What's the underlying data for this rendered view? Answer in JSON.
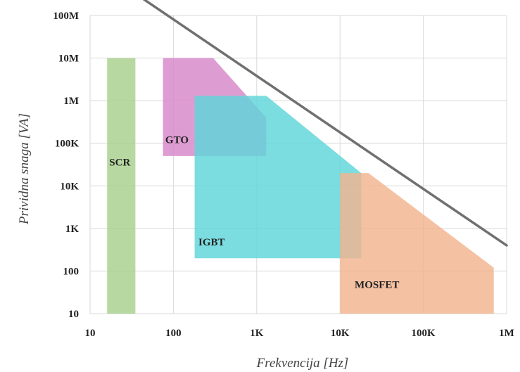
{
  "chart_data": {
    "type": "area",
    "x_scale": "log",
    "y_scale": "log",
    "xlim": [
      10,
      1000000
    ],
    "ylim": [
      10,
      100000000
    ],
    "grid": true,
    "xlabel": "Frekvencija [Hz]",
    "ylabel": "Prividna snaga [VA]",
    "x_ticks": [
      {
        "value": 10,
        "label": "10"
      },
      {
        "value": 100,
        "label": "100"
      },
      {
        "value": 1000,
        "label": "1K"
      },
      {
        "value": 10000,
        "label": "10K"
      },
      {
        "value": 100000,
        "label": "100K"
      },
      {
        "value": 1000000,
        "label": "1M"
      }
    ],
    "y_ticks": [
      {
        "value": 10,
        "label": "10"
      },
      {
        "value": 100,
        "label": "100"
      },
      {
        "value": 1000,
        "label": "1K"
      },
      {
        "value": 10000,
        "label": "10K"
      },
      {
        "value": 100000,
        "label": "100K"
      },
      {
        "value": 1000000,
        "label": "1M"
      },
      {
        "value": 10000000,
        "label": "10M"
      },
      {
        "value": 100000000,
        "label": "100M"
      }
    ],
    "regions": [
      {
        "label": "SCR",
        "color": "#a8d08d",
        "polygon": [
          [
            16,
            10
          ],
          [
            35,
            10
          ],
          [
            35,
            10000000
          ],
          [
            16,
            10000000
          ]
        ],
        "label_at": [
          17,
          30000
        ]
      },
      {
        "label": "GTO",
        "color": "#d787c8",
        "polygon": [
          [
            75,
            50000
          ],
          [
            1300,
            50000
          ],
          [
            1300,
            400000
          ],
          [
            300,
            10000000
          ],
          [
            75,
            10000000
          ]
        ],
        "label_at": [
          80,
          100000
        ]
      },
      {
        "label": "IGBT",
        "color": "#5fd6d9",
        "polygon": [
          [
            180,
            200
          ],
          [
            18000,
            200
          ],
          [
            18000,
            20000
          ],
          [
            1300,
            1300000
          ],
          [
            180,
            1300000
          ]
        ],
        "label_at": [
          200,
          400
        ]
      },
      {
        "label": "MOSFET",
        "color": "#f2b38f",
        "polygon": [
          [
            10000,
            10
          ],
          [
            700000,
            10
          ],
          [
            700000,
            120
          ],
          [
            22000,
            20000
          ],
          [
            10000,
            20000
          ]
        ],
        "label_at": [
          15000,
          40
        ]
      }
    ],
    "boundary_line": {
      "color": "#707070",
      "points": [
        [
          30,
          400000000
        ],
        [
          1000000,
          400
        ]
      ]
    }
  }
}
